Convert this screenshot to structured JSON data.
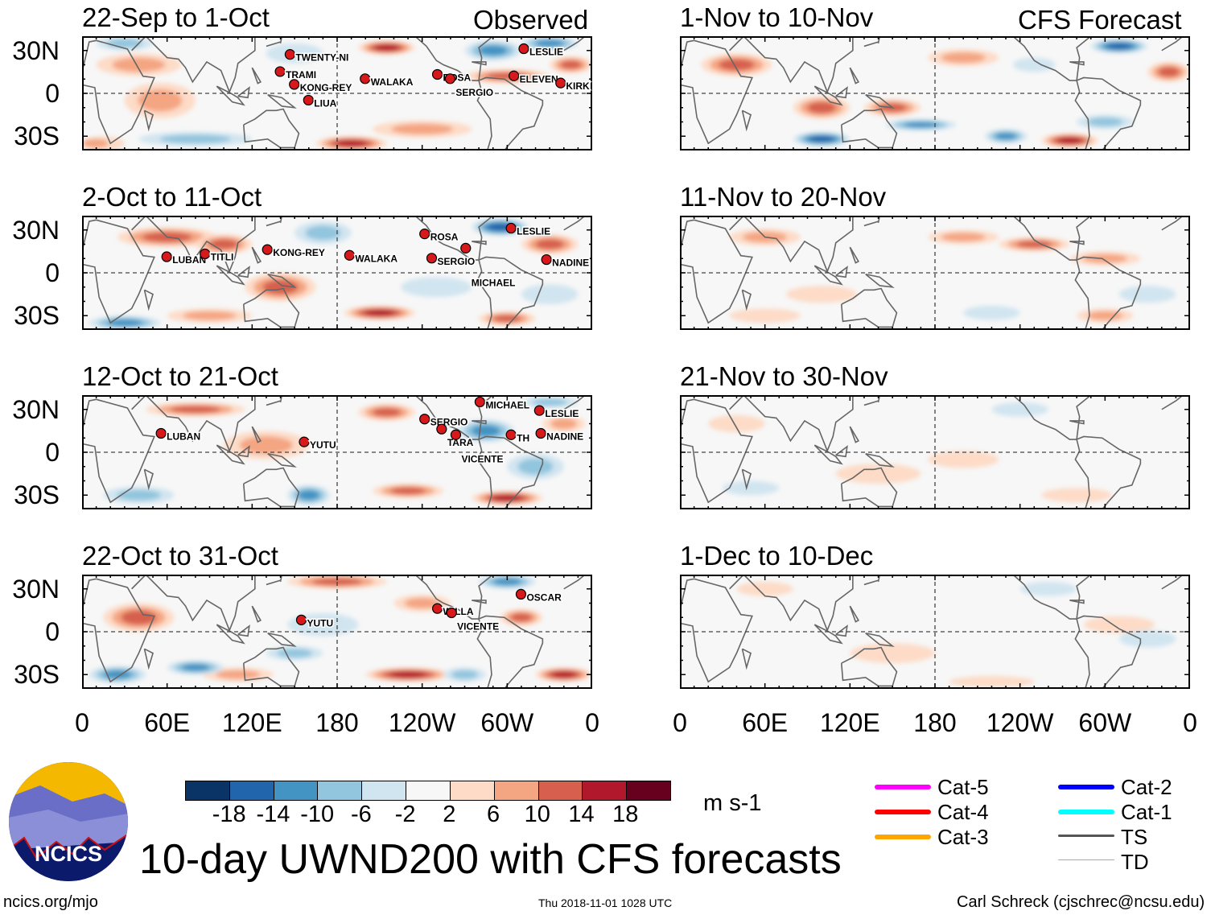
{
  "header": {
    "observed_label": "Observed",
    "forecast_label": "CFS Forecast"
  },
  "lat_labels": [
    "30N",
    "0",
    "30S"
  ],
  "lon_labels": [
    "0",
    "60E",
    "120E",
    "180",
    "120W",
    "60W",
    "0"
  ],
  "colors": {
    "scale": [
      "#0a3466",
      "#2166ac",
      "#4393c3",
      "#92c5de",
      "#d1e5f0",
      "#f7f7f7",
      "#fddbc7",
      "#f4a582",
      "#d6604d",
      "#b2182b",
      "#67001f"
    ],
    "coast": "#666666",
    "storm": "#d7191c"
  },
  "chart_data": {
    "type": "heatmap",
    "variable": "200-hPa zonal wind anomaly",
    "units": "m s-1",
    "lon_range": [
      0,
      360
    ],
    "lat_range": [
      -40,
      40
    ],
    "color_levels": [
      -18,
      -14,
      -10,
      -6,
      -2,
      2,
      6,
      10,
      14,
      18
    ],
    "panels": [
      {
        "title": "22-Sep to 1-Oct",
        "column": "observed",
        "baseline": 1,
        "anomalies": [
          {
            "lon": 40,
            "lat": 20,
            "lon_span": 60,
            "lat_span": 16,
            "value": 10
          },
          {
            "lon": 55,
            "lat": -5,
            "lon_span": 50,
            "lat_span": 25,
            "value": 8
          },
          {
            "lon": 80,
            "lat": -32,
            "lon_span": 80,
            "lat_span": 10,
            "value": -10
          },
          {
            "lon": 190,
            "lat": -35,
            "lon_span": 50,
            "lat_span": 10,
            "value": 16
          },
          {
            "lon": 30,
            "lat": 35,
            "lon_span": 40,
            "lat_span": 10,
            "value": -8
          },
          {
            "lon": 215,
            "lat": 32,
            "lon_span": 40,
            "lat_span": 10,
            "value": 16
          },
          {
            "lon": 290,
            "lat": 30,
            "lon_span": 40,
            "lat_span": 14,
            "value": -14
          },
          {
            "lon": 300,
            "lat": 12,
            "lon_span": 60,
            "lat_span": 10,
            "value": 12
          },
          {
            "lon": 240,
            "lat": -25,
            "lon_span": 70,
            "lat_span": 12,
            "value": 10
          },
          {
            "lon": 330,
            "lat": 35,
            "lon_span": 40,
            "lat_span": 10,
            "value": -12
          },
          {
            "lon": 345,
            "lat": 20,
            "lon_span": 30,
            "lat_span": 12,
            "value": 12
          },
          {
            "lon": 150,
            "lat": 28,
            "lon_span": 40,
            "lat_span": 14,
            "value": -6
          },
          {
            "lon": 5,
            "lat": -35,
            "lon_span": 30,
            "lat_span": 10,
            "value": 8
          }
        ],
        "storms": [
          {
            "name": "TWENTY-NI",
            "lon": 149,
            "lat": 25
          },
          {
            "name": "TRAMI",
            "lon": 142,
            "lat": 13
          },
          {
            "name": "KONG-REY",
            "lon": 152,
            "lat": 4
          },
          {
            "name": "LIUA",
            "lon": 162,
            "lat": -7
          },
          {
            "name": "WALAKA",
            "lon": 202,
            "lat": 8
          },
          {
            "name": "ROSA",
            "lon": 253,
            "lat": 11
          },
          {
            "name": "SERGIO",
            "lon": 262,
            "lat": 8
          },
          {
            "name": "LESLIE",
            "lon": 314,
            "lat": 29
          },
          {
            "name": "ELEVEN",
            "lon": 307,
            "lat": 10
          },
          {
            "name": "KIRK",
            "lon": 340,
            "lat": 5
          }
        ]
      },
      {
        "title": "2-Oct to 11-Oct",
        "column": "observed",
        "baseline": 1,
        "anomalies": [
          {
            "lon": 60,
            "lat": 25,
            "lon_span": 70,
            "lat_span": 14,
            "value": 14
          },
          {
            "lon": 140,
            "lat": -10,
            "lon_span": 50,
            "lat_span": 20,
            "value": 12
          },
          {
            "lon": 100,
            "lat": 20,
            "lon_span": 40,
            "lat_span": 14,
            "value": 12
          },
          {
            "lon": 30,
            "lat": -35,
            "lon_span": 50,
            "lat_span": 10,
            "value": -14
          },
          {
            "lon": 170,
            "lat": 28,
            "lon_span": 40,
            "lat_span": 16,
            "value": -8
          },
          {
            "lon": 210,
            "lat": -28,
            "lon_span": 50,
            "lat_span": 10,
            "value": 16
          },
          {
            "lon": 300,
            "lat": -32,
            "lon_span": 40,
            "lat_span": 10,
            "value": 14
          },
          {
            "lon": 295,
            "lat": 32,
            "lon_span": 40,
            "lat_span": 12,
            "value": -16
          },
          {
            "lon": 330,
            "lat": 20,
            "lon_span": 40,
            "lat_span": 14,
            "value": 12
          },
          {
            "lon": 250,
            "lat": -10,
            "lon_span": 50,
            "lat_span": 14,
            "value": -6
          },
          {
            "lon": 90,
            "lat": -30,
            "lon_span": 60,
            "lat_span": 10,
            "value": 10
          },
          {
            "lon": 330,
            "lat": -15,
            "lon_span": 40,
            "lat_span": 14,
            "value": -6
          }
        ],
        "storms": [
          {
            "name": "LUBAN",
            "lon": 62,
            "lat": 9
          },
          {
            "name": "TITLI",
            "lon": 89,
            "lat": 11
          },
          {
            "name": "KONG-REY",
            "lon": 133,
            "lat": 14
          },
          {
            "name": "WALAKA",
            "lon": 191,
            "lat": 10
          },
          {
            "name": "ROSA",
            "lon": 244,
            "lat": 25
          },
          {
            "name": "SERGIO",
            "lon": 249,
            "lat": 8
          },
          {
            "name": "MICHAEL",
            "lon": 273,
            "lat": 15
          },
          {
            "name": "LESLIE",
            "lon": 305,
            "lat": 29
          },
          {
            "name": "NADINE",
            "lon": 330,
            "lat": 7
          }
        ]
      },
      {
        "title": "12-Oct to 21-Oct",
        "column": "observed",
        "baseline": 0,
        "anomalies": [
          {
            "lon": 80,
            "lat": 30,
            "lon_span": 70,
            "lat_span": 10,
            "value": 12
          },
          {
            "lon": 215,
            "lat": 28,
            "lon_span": 40,
            "lat_span": 12,
            "value": 14
          },
          {
            "lon": 285,
            "lat": 15,
            "lon_span": 40,
            "lat_span": 16,
            "value": -12
          },
          {
            "lon": 300,
            "lat": -32,
            "lon_span": 50,
            "lat_span": 10,
            "value": 16
          },
          {
            "lon": 230,
            "lat": -27,
            "lon_span": 50,
            "lat_span": 10,
            "value": 14
          },
          {
            "lon": 160,
            "lat": -30,
            "lon_span": 30,
            "lat_span": 14,
            "value": -12
          },
          {
            "lon": 320,
            "lat": -10,
            "lon_span": 40,
            "lat_span": 18,
            "value": -10
          },
          {
            "lon": 130,
            "lat": 5,
            "lon_span": 60,
            "lat_span": 20,
            "value": 8
          },
          {
            "lon": 40,
            "lat": -30,
            "lon_span": 50,
            "lat_span": 12,
            "value": -8
          },
          {
            "lon": 340,
            "lat": 20,
            "lon_span": 30,
            "lat_span": 12,
            "value": 10
          },
          {
            "lon": 330,
            "lat": 35,
            "lon_span": 40,
            "lat_span": 8,
            "value": -10
          }
        ],
        "storms": [
          {
            "name": "MICHAEL",
            "lon": 283,
            "lat": 33
          },
          {
            "name": "LESLIE",
            "lon": 325,
            "lat": 27
          },
          {
            "name": "SERGIO",
            "lon": 244,
            "lat": 21
          },
          {
            "name": "TARA",
            "lon": 256,
            "lat": 14
          },
          {
            "name": "VICENTE",
            "lon": 266,
            "lat": 10
          },
          {
            "name": "TH",
            "lon": 305,
            "lat": 10
          },
          {
            "name": "NADINE",
            "lon": 326,
            "lat": 11
          },
          {
            "name": "LUBAN",
            "lon": 58,
            "lat": 11
          },
          {
            "name": "YUTU",
            "lon": 159,
            "lat": 5
          }
        ]
      },
      {
        "title": "22-Oct to 31-Oct",
        "column": "observed",
        "baseline": 1,
        "anomalies": [
          {
            "lon": 180,
            "lat": 35,
            "lon_span": 70,
            "lat_span": 10,
            "value": 14
          },
          {
            "lon": 40,
            "lat": 10,
            "lon_span": 50,
            "lat_span": 20,
            "value": 12
          },
          {
            "lon": 25,
            "lat": -30,
            "lon_span": 40,
            "lat_span": 12,
            "value": -14
          },
          {
            "lon": 110,
            "lat": -30,
            "lon_span": 50,
            "lat_span": 10,
            "value": 10
          },
          {
            "lon": 80,
            "lat": -25,
            "lon_span": 40,
            "lat_span": 10,
            "value": -12
          },
          {
            "lon": 230,
            "lat": -30,
            "lon_span": 60,
            "lat_span": 10,
            "value": 16
          },
          {
            "lon": 340,
            "lat": -30,
            "lon_span": 40,
            "lat_span": 10,
            "value": 16
          },
          {
            "lon": 270,
            "lat": -30,
            "lon_span": 30,
            "lat_span": 10,
            "value": -10
          },
          {
            "lon": 300,
            "lat": 35,
            "lon_span": 40,
            "lat_span": 10,
            "value": -14
          },
          {
            "lon": 310,
            "lat": 10,
            "lon_span": 30,
            "lat_span": 12,
            "value": 14
          },
          {
            "lon": 170,
            "lat": 5,
            "lon_span": 50,
            "lat_span": 16,
            "value": -6
          },
          {
            "lon": 240,
            "lat": 20,
            "lon_span": 40,
            "lat_span": 12,
            "value": 8
          },
          {
            "lon": 150,
            "lat": -15,
            "lon_span": 40,
            "lat_span": 10,
            "value": -8
          }
        ],
        "storms": [
          {
            "name": "YUTU",
            "lon": 157,
            "lat": 6
          },
          {
            "name": "WILLA",
            "lon": 253,
            "lat": 14
          },
          {
            "name": "VICENTE",
            "lon": 263,
            "lat": 11
          },
          {
            "name": "OSCAR",
            "lon": 312,
            "lat": 24
          }
        ]
      },
      {
        "title": "1-Nov to 10-Nov",
        "column": "forecast",
        "baseline": 0,
        "anomalies": [
          {
            "lon": 40,
            "lat": 20,
            "lon_span": 50,
            "lat_span": 16,
            "value": 14
          },
          {
            "lon": 100,
            "lat": -10,
            "lon_span": 40,
            "lat_span": 16,
            "value": 12
          },
          {
            "lon": 100,
            "lat": -32,
            "lon_span": 40,
            "lat_span": 10,
            "value": -16
          },
          {
            "lon": 170,
            "lat": -22,
            "lon_span": 50,
            "lat_span": 8,
            "value": -14
          },
          {
            "lon": 150,
            "lat": -10,
            "lon_span": 40,
            "lat_span": 12,
            "value": 12
          },
          {
            "lon": 230,
            "lat": -30,
            "lon_span": 30,
            "lat_span": 10,
            "value": -12
          },
          {
            "lon": 275,
            "lat": -33,
            "lon_span": 40,
            "lat_span": 10,
            "value": 16
          },
          {
            "lon": 310,
            "lat": 33,
            "lon_span": 40,
            "lat_span": 10,
            "value": -16
          },
          {
            "lon": 200,
            "lat": 25,
            "lon_span": 50,
            "lat_span": 12,
            "value": 8
          },
          {
            "lon": 250,
            "lat": 20,
            "lon_span": 30,
            "lat_span": 10,
            "value": -6
          },
          {
            "lon": 345,
            "lat": 15,
            "lon_span": 30,
            "lat_span": 14,
            "value": 12
          },
          {
            "lon": 300,
            "lat": -20,
            "lon_span": 40,
            "lat_span": 10,
            "value": -8
          }
        ],
        "storms": []
      },
      {
        "title": "11-Nov to 20-Nov",
        "column": "forecast",
        "baseline": 0,
        "anomalies": [
          {
            "lon": 200,
            "lat": 25,
            "lon_span": 50,
            "lat_span": 10,
            "value": 8
          },
          {
            "lon": 250,
            "lat": 20,
            "lon_span": 50,
            "lat_span": 10,
            "value": 12
          },
          {
            "lon": 300,
            "lat": 10,
            "lon_span": 50,
            "lat_span": 10,
            "value": 10
          },
          {
            "lon": 330,
            "lat": -15,
            "lon_span": 40,
            "lat_span": 12,
            "value": -6
          },
          {
            "lon": 60,
            "lat": 25,
            "lon_span": 50,
            "lat_span": 12,
            "value": 8
          },
          {
            "lon": 100,
            "lat": -15,
            "lon_span": 50,
            "lat_span": 12,
            "value": 6
          },
          {
            "lon": 60,
            "lat": -30,
            "lon_span": 50,
            "lat_span": 10,
            "value": 6
          },
          {
            "lon": 220,
            "lat": -28,
            "lon_span": 40,
            "lat_span": 10,
            "value": -6
          },
          {
            "lon": 300,
            "lat": -30,
            "lon_span": 40,
            "lat_span": 10,
            "value": 8
          }
        ],
        "storms": []
      },
      {
        "title": "21-Nov to 30-Nov",
        "column": "forecast",
        "baseline": 0,
        "anomalies": [
          {
            "lon": 140,
            "lat": -15,
            "lon_span": 60,
            "lat_span": 14,
            "value": 4
          },
          {
            "lon": 280,
            "lat": -30,
            "lon_span": 50,
            "lat_span": 10,
            "value": 6
          },
          {
            "lon": 40,
            "lat": 20,
            "lon_span": 40,
            "lat_span": 12,
            "value": 4
          },
          {
            "lon": 50,
            "lat": -25,
            "lon_span": 40,
            "lat_span": 10,
            "value": -4
          },
          {
            "lon": 240,
            "lat": 30,
            "lon_span": 40,
            "lat_span": 10,
            "value": -4
          },
          {
            "lon": 200,
            "lat": -5,
            "lon_span": 50,
            "lat_span": 12,
            "value": 3
          }
        ],
        "storms": []
      },
      {
        "title": "1-Dec to 10-Dec",
        "column": "forecast",
        "baseline": 0,
        "anomalies": [
          {
            "lon": 150,
            "lat": -15,
            "lon_span": 60,
            "lat_span": 14,
            "value": 6
          },
          {
            "lon": 310,
            "lat": 5,
            "lon_span": 50,
            "lat_span": 12,
            "value": 6
          },
          {
            "lon": 220,
            "lat": -35,
            "lon_span": 60,
            "lat_span": 8,
            "value": 6
          },
          {
            "lon": 260,
            "lat": 30,
            "lon_span": 40,
            "lat_span": 10,
            "value": -4
          },
          {
            "lon": 60,
            "lat": 30,
            "lon_span": 40,
            "lat_span": 10,
            "value": 4
          },
          {
            "lon": 330,
            "lat": -5,
            "lon_span": 40,
            "lat_span": 12,
            "value": -4
          }
        ],
        "storms": []
      }
    ]
  },
  "colorbar": {
    "labels": [
      "-18",
      "-14",
      "-10",
      "-6",
      "-2",
      "2",
      "6",
      "10",
      "14",
      "18"
    ],
    "units": "m s-1"
  },
  "legend": {
    "items": [
      {
        "label": "Cat-5",
        "color": "#ff00ff"
      },
      {
        "label": "Cat-4",
        "color": "#ff0000"
      },
      {
        "label": "Cat-3",
        "color": "#ffa500"
      },
      {
        "label": "Cat-2",
        "color": "#0000ff"
      },
      {
        "label": "Cat-1",
        "color": "#00ffff"
      },
      {
        "label": "TS",
        "color": "#555555"
      },
      {
        "label": "TD",
        "color": "#aaaaaa"
      }
    ]
  },
  "logo": {
    "text": "NCICS"
  },
  "footer": {
    "main_title": "10-day UWND200 with CFS forecasts",
    "url": "ncics.org/mjo",
    "timestamp": "Thu 2018-11-01 1028 UTC",
    "credit": "Carl Schreck (cjschrec@ncsu.edu)"
  }
}
